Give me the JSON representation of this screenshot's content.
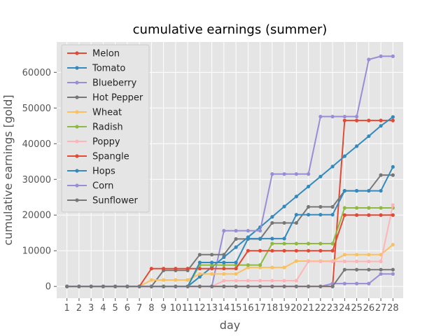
{
  "chart_data": {
    "type": "line",
    "title": "cumulative earnings (summer)",
    "xlabel": "day",
    "ylabel": "cumulative earnings [gold]",
    "x": [
      1,
      2,
      3,
      4,
      5,
      6,
      7,
      8,
      9,
      10,
      11,
      12,
      13,
      14,
      15,
      16,
      17,
      18,
      19,
      20,
      21,
      22,
      23,
      24,
      25,
      26,
      27,
      28
    ],
    "ylim": [
      -3300,
      68500
    ],
    "yticks": [
      0,
      10000,
      20000,
      30000,
      40000,
      50000,
      60000
    ],
    "grid": true,
    "legend_position": "top-left",
    "series": [
      {
        "name": "Melon",
        "color": "#E24A33",
        "values": [
          0,
          0,
          0,
          0,
          0,
          0,
          0,
          0,
          0,
          0,
          0,
          0,
          0,
          0,
          0,
          0,
          0,
          0,
          0,
          0,
          0,
          0,
          0,
          46500,
          46500,
          46500,
          46500,
          46500
        ]
      },
      {
        "name": "Tomato",
        "color": "#348ABD",
        "values": [
          0,
          0,
          0,
          0,
          0,
          0,
          0,
          0,
          0,
          0,
          0,
          2700,
          5400,
          8200,
          11000,
          13800,
          16600,
          19500,
          22400,
          25200,
          28000,
          30800,
          33600,
          36500,
          39300,
          42100,
          45000,
          47500
        ]
      },
      {
        "name": "Blueberry",
        "color": "#988ED5",
        "values": [
          0,
          0,
          0,
          0,
          0,
          0,
          0,
          0,
          0,
          0,
          0,
          0,
          0,
          15600,
          15600,
          15600,
          15600,
          31500,
          31500,
          31500,
          31500,
          47600,
          47600,
          47600,
          47600,
          63600,
          64500,
          64500
        ]
      },
      {
        "name": "Hot Pepper",
        "color": "#777777",
        "values": [
          0,
          0,
          0,
          0,
          0,
          0,
          0,
          0,
          4500,
          4500,
          4500,
          8900,
          8900,
          8900,
          13300,
          13300,
          13300,
          17800,
          17800,
          17800,
          22300,
          22300,
          22300,
          26800,
          26800,
          26800,
          31200,
          31200
        ]
      },
      {
        "name": "Wheat",
        "color": "#FBC15E",
        "values": [
          0,
          0,
          0,
          0,
          0,
          0,
          0,
          1800,
          1800,
          1800,
          1800,
          3500,
          3500,
          3500,
          3500,
          5300,
          5300,
          5300,
          5300,
          7100,
          7100,
          7100,
          7100,
          8900,
          8900,
          8900,
          8900,
          11700
        ]
      },
      {
        "name": "Radish",
        "color": "#8EBA42",
        "values": [
          0,
          0,
          0,
          0,
          0,
          0,
          0,
          0,
          0,
          0,
          0,
          6000,
          6000,
          6000,
          6000,
          6000,
          6000,
          12000,
          12000,
          12000,
          12000,
          12000,
          12000,
          22000,
          22000,
          22000,
          22000,
          22000
        ]
      },
      {
        "name": "Poppy",
        "color": "#FFB5B8",
        "values": [
          0,
          0,
          0,
          0,
          0,
          0,
          0,
          0,
          0,
          0,
          0,
          0,
          0,
          1600,
          1600,
          1600,
          1600,
          1600,
          1600,
          1600,
          7000,
          7000,
          7000,
          7000,
          7000,
          7000,
          7000,
          22800
        ]
      },
      {
        "name": "Spangle",
        "color": "#E24A33",
        "values": [
          0,
          0,
          0,
          0,
          0,
          0,
          0,
          5000,
          5000,
          5000,
          5000,
          5000,
          5000,
          5000,
          5000,
          10000,
          10000,
          10000,
          10000,
          10000,
          10000,
          10000,
          10000,
          20000,
          20000,
          20000,
          20000,
          20000
        ]
      },
      {
        "name": "Hops",
        "color": "#348ABD",
        "values": [
          0,
          0,
          0,
          0,
          0,
          0,
          0,
          0,
          0,
          0,
          0,
          6700,
          6700,
          6700,
          6700,
          13400,
          13400,
          13400,
          13400,
          20100,
          20100,
          20100,
          20100,
          26800,
          26800,
          26800,
          26800,
          33500
        ]
      },
      {
        "name": "Corn",
        "color": "#988ED5",
        "values": [
          0,
          0,
          0,
          0,
          0,
          0,
          0,
          0,
          0,
          0,
          0,
          0,
          0,
          0,
          0,
          0,
          0,
          0,
          0,
          0,
          0,
          0,
          800,
          800,
          800,
          800,
          3500,
          3500
        ]
      },
      {
        "name": "Sunflower",
        "color": "#777777",
        "values": [
          0,
          0,
          0,
          0,
          0,
          0,
          0,
          0,
          0,
          0,
          0,
          0,
          0,
          0,
          0,
          0,
          0,
          0,
          0,
          0,
          0,
          0,
          0,
          4700,
          4700,
          4700,
          4700,
          4700
        ]
      }
    ]
  }
}
